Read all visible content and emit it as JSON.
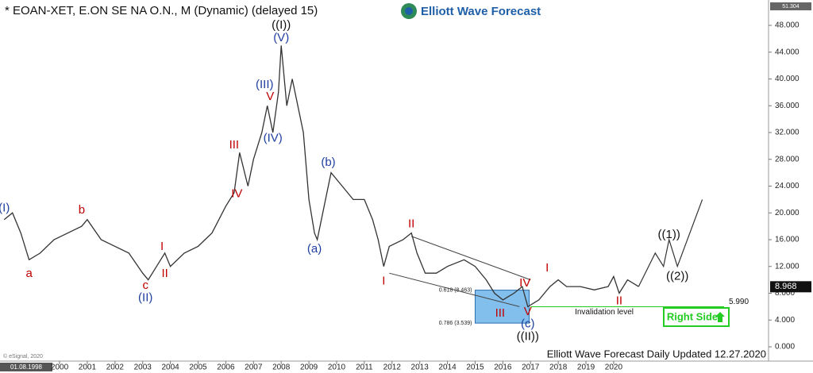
{
  "chart_data": {
    "type": "line",
    "title": "* EOAN-XET, E.ON SE NA O.N., M (Dynamic) (delayed 15)",
    "logo": "Elliott Wave Forecast",
    "footer": "Elliott Wave Forecast Daily Updated 12.27.2020",
    "copyright": "© eSignal, 2020",
    "start_date": "01.08.1998",
    "axis_max_label": "51.304",
    "xlim": [
      1997.85,
      2025.59
    ],
    "ylim": [
      0,
      51.304
    ],
    "xticks": [
      2000,
      2001,
      2002,
      2003,
      2004,
      2005,
      2006,
      2007,
      2008,
      2009,
      2010,
      2011,
      2012,
      2013,
      2014,
      2015,
      2016,
      2017,
      2018,
      2019,
      2020
    ],
    "yticks": [
      {
        "value": 0,
        "label": "0.000"
      },
      {
        "value": 4,
        "label": "4.000"
      },
      {
        "value": 8,
        "label": "8.000"
      },
      {
        "value": 12,
        "label": "12.000"
      },
      {
        "value": 16,
        "label": "16.000"
      },
      {
        "value": 20,
        "label": "20.000"
      },
      {
        "value": 24,
        "label": "24.000"
      },
      {
        "value": 28,
        "label": "28.000"
      },
      {
        "value": 32,
        "label": "32.000"
      },
      {
        "value": 36,
        "label": "36.000"
      },
      {
        "value": 40,
        "label": "40.000"
      },
      {
        "value": 44,
        "label": "44.000"
      },
      {
        "value": 48,
        "label": "48.000"
      }
    ],
    "x": [
      1998.0,
      1998.3,
      1998.6,
      1998.9,
      1999.3,
      1999.8,
      2000.3,
      2000.8,
      2001.0,
      2001.5,
      2002.0,
      2002.5,
      2003.0,
      2003.2,
      2003.5,
      2003.8,
      2004.0,
      2004.5,
      2005.0,
      2005.5,
      2006.0,
      2006.3,
      2006.5,
      2006.8,
      2007.0,
      2007.3,
      2007.5,
      2007.7,
      2007.9,
      2008.0,
      2008.2,
      2008.4,
      2008.6,
      2008.8,
      2009.0,
      2009.2,
      2009.3,
      2009.6,
      2009.8,
      2010.2,
      2010.6,
      2011.0,
      2011.3,
      2011.5,
      2011.7,
      2011.9,
      2012.4,
      2012.7,
      2012.9,
      2013.2,
      2013.6,
      2014.0,
      2014.6,
      2015.0,
      2015.4,
      2015.7,
      2016.0,
      2016.4,
      2016.7,
      2016.9,
      2017.3,
      2017.7,
      2018.0,
      2018.3,
      2018.8,
      2019.3,
      2019.8,
      2020.0,
      2020.2,
      2020.5,
      2020.9
    ],
    "series": [
      {
        "color": "#333333",
        "values": [
          19,
          20,
          17,
          13,
          14,
          16,
          17,
          18,
          19,
          16,
          15,
          14,
          11,
          10,
          12,
          14,
          12,
          14,
          15,
          17,
          21,
          23,
          29,
          24,
          28,
          32,
          36,
          32,
          38,
          45,
          36,
          40,
          36,
          32,
          22,
          17,
          16,
          22,
          26,
          24,
          22,
          22,
          19,
          16,
          12,
          15,
          16,
          17,
          14,
          11,
          11,
          12,
          13,
          12,
          10,
          8,
          7,
          8,
          9,
          6,
          7,
          9,
          10,
          9,
          9,
          8.5,
          9,
          10.5,
          8,
          10,
          9
        ]
      }
    ],
    "projection": {
      "color": "#333333",
      "x": [
        2020.9,
        2021.5,
        2021.8,
        2022.0,
        2022.3,
        2023.2
      ],
      "values": [
        9,
        14,
        12,
        16,
        12,
        22
      ]
    },
    "last_value": 8.968,
    "fib_levels": [
      {
        "value": 8.463,
        "label": "0.618 (8.463)"
      },
      {
        "value": 3.539,
        "label": "0.786 (3.539)"
      }
    ],
    "invalidation": {
      "value": 5.99,
      "label": "5.990",
      "text": "Invalidation level",
      "color": "#22cc22"
    },
    "right_side": "Right Side",
    "annotations": [
      {
        "text": "(I)",
        "color": "#1f3fa0",
        "x": 1998.0,
        "y": 20.7
      },
      {
        "text": "a",
        "color": "#c00000",
        "x": 1998.9,
        "y": 10.9
      },
      {
        "text": "b",
        "color": "#c00000",
        "x": 2000.8,
        "y": 20.4
      },
      {
        "text": "c",
        "color": "#c00000",
        "x": 2003.1,
        "y": 9.1
      },
      {
        "text": "(II)",
        "color": "#1f3fa0",
        "x": 2003.1,
        "y": 7.3
      },
      {
        "text": "I",
        "color": "#c00000",
        "x": 2003.7,
        "y": 14.9
      },
      {
        "text": "II",
        "color": "#c00000",
        "x": 2003.8,
        "y": 10.9
      },
      {
        "text": "III",
        "color": "#c00000",
        "x": 2006.3,
        "y": 30.1
      },
      {
        "text": "IV",
        "color": "#c00000",
        "x": 2006.4,
        "y": 22.8
      },
      {
        "text": "V",
        "color": "#c00000",
        "x": 2007.6,
        "y": 37.3
      },
      {
        "text": "(III)",
        "color": "#1f3fa0",
        "x": 2007.4,
        "y": 39.1
      },
      {
        "text": "(IV)",
        "color": "#1f3fa0",
        "x": 2007.7,
        "y": 31.1
      },
      {
        "text": "(V)",
        "color": "#1f3fa0",
        "x": 2008.0,
        "y": 46.1
      },
      {
        "text": "((I))",
        "color": "#111111",
        "x": 2008.0,
        "y": 48
      },
      {
        "text": "(b)",
        "color": "#1f3fa0",
        "x": 2009.7,
        "y": 27.5
      },
      {
        "text": "(a)",
        "color": "#1f3fa0",
        "x": 2009.2,
        "y": 14.6
      },
      {
        "text": "I",
        "color": "#c00000",
        "x": 2011.7,
        "y": 9.8
      },
      {
        "text": "II",
        "color": "#c00000",
        "x": 2012.7,
        "y": 18.3
      },
      {
        "text": "IV",
        "color": "#c00000",
        "x": 2016.8,
        "y": 9.5
      },
      {
        "text": "III",
        "color": "#c00000",
        "x": 2015.9,
        "y": 5
      },
      {
        "text": "V",
        "color": "#c00000",
        "x": 2016.9,
        "y": 5.2
      },
      {
        "text": "(c)",
        "color": "#1f3fa0",
        "x": 2016.9,
        "y": 3.4
      },
      {
        "text": "((II))",
        "color": "#111111",
        "x": 2016.9,
        "y": 1.5
      },
      {
        "text": "I",
        "color": "#c00000",
        "x": 2017.6,
        "y": 11.7
      },
      {
        "text": "II",
        "color": "#c00000",
        "x": 2020.2,
        "y": 6.8
      },
      {
        "text": "((1))",
        "color": "#111111",
        "x": 2022.0,
        "y": 16.7
      },
      {
        "text": "((2))",
        "color": "#111111",
        "x": 2022.3,
        "y": 10.5
      }
    ]
  }
}
